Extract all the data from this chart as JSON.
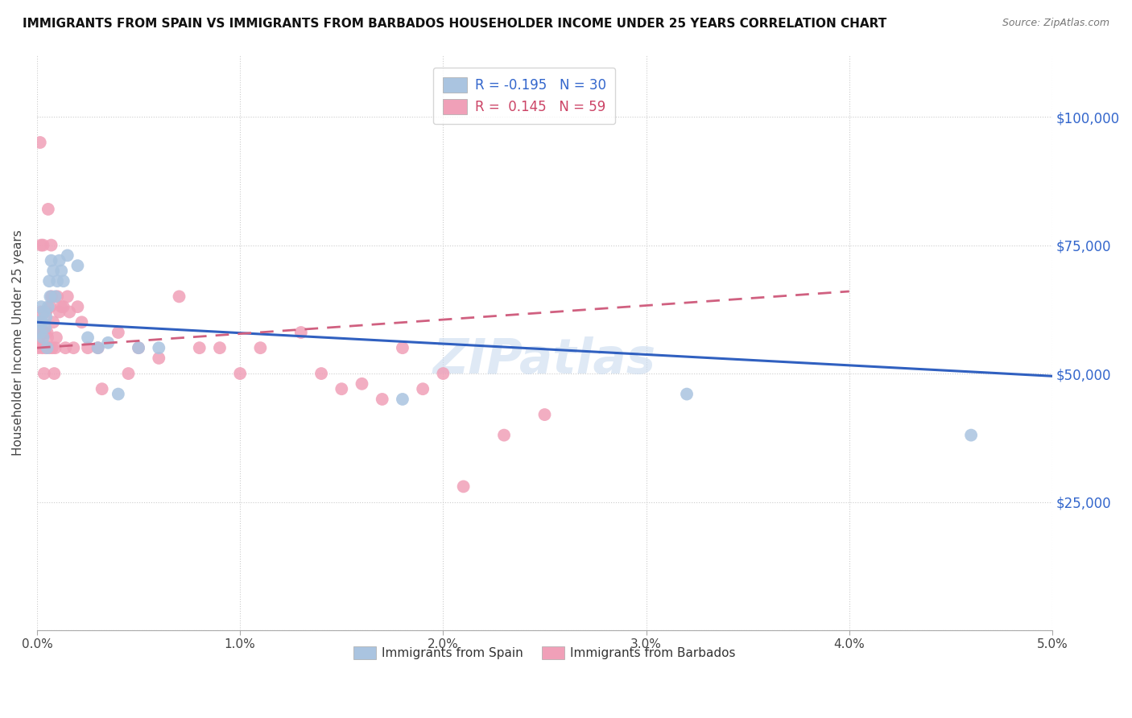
{
  "title": "IMMIGRANTS FROM SPAIN VS IMMIGRANTS FROM BARBADOS HOUSEHOLDER INCOME UNDER 25 YEARS CORRELATION CHART",
  "source": "Source: ZipAtlas.com",
  "ylabel": "Householder Income Under 25 years",
  "xlim": [
    0.0,
    0.05
  ],
  "ylim": [
    0,
    112000
  ],
  "spain_R": -0.195,
  "spain_N": 30,
  "barbados_R": 0.145,
  "barbados_N": 59,
  "spain_color": "#aac4e0",
  "barbados_color": "#f0a0b8",
  "spain_line_color": "#3060c0",
  "barbados_line_color": "#d06080",
  "spain_line_x0": 0.0,
  "spain_line_y0": 60000,
  "spain_line_x1": 0.05,
  "spain_line_y1": 49500,
  "barbados_line_x0": 0.0,
  "barbados_line_y0": 55000,
  "barbados_line_x1": 0.04,
  "barbados_line_y1": 66000,
  "spain_x": [
    0.0001,
    0.00015,
    0.0002,
    0.00025,
    0.0003,
    0.00035,
    0.0004,
    0.00045,
    0.0005,
    0.00055,
    0.0006,
    0.00065,
    0.0007,
    0.0008,
    0.0009,
    0.001,
    0.0011,
    0.0012,
    0.0013,
    0.0015,
    0.002,
    0.0025,
    0.003,
    0.0035,
    0.004,
    0.005,
    0.006,
    0.018,
    0.032,
    0.046
  ],
  "spain_y": [
    60000,
    58000,
    63000,
    60000,
    57000,
    62000,
    59000,
    61000,
    55000,
    63000,
    68000,
    65000,
    72000,
    70000,
    65000,
    68000,
    72000,
    70000,
    68000,
    73000,
    71000,
    57000,
    55000,
    56000,
    46000,
    55000,
    55000,
    45000,
    46000,
    38000
  ],
  "barbados_x": [
    5e-05,
    0.0001,
    0.00012,
    0.00015,
    0.00018,
    0.0002,
    0.00022,
    0.00025,
    0.0003,
    0.00032,
    0.00035,
    0.0004,
    0.00042,
    0.00045,
    0.0005,
    0.00052,
    0.00055,
    0.0006,
    0.00065,
    0.0007,
    0.00072,
    0.00075,
    0.0008,
    0.00085,
    0.0009,
    0.00095,
    0.001,
    0.0011,
    0.0012,
    0.0013,
    0.0014,
    0.0015,
    0.0016,
    0.0018,
    0.002,
    0.0022,
    0.0025,
    0.003,
    0.0032,
    0.004,
    0.0045,
    0.005,
    0.006,
    0.007,
    0.008,
    0.009,
    0.01,
    0.011,
    0.013,
    0.014,
    0.015,
    0.016,
    0.017,
    0.018,
    0.019,
    0.02,
    0.021,
    0.023,
    0.025
  ],
  "barbados_y": [
    55000,
    57000,
    58000,
    95000,
    62000,
    75000,
    60000,
    55000,
    75000,
    58000,
    50000,
    58000,
    55000,
    62000,
    58000,
    57000,
    82000,
    55000,
    63000,
    75000,
    65000,
    55000,
    60000,
    50000,
    55000,
    57000,
    65000,
    62000,
    63000,
    63000,
    55000,
    65000,
    62000,
    55000,
    63000,
    60000,
    55000,
    55000,
    47000,
    58000,
    50000,
    55000,
    53000,
    65000,
    55000,
    55000,
    50000,
    55000,
    58000,
    50000,
    47000,
    48000,
    45000,
    55000,
    47000,
    50000,
    28000,
    38000,
    42000
  ],
  "ytick_positions": [
    0,
    25000,
    50000,
    75000,
    100000
  ],
  "ytick_labels": [
    "",
    "$25,000",
    "$50,000",
    "$75,000",
    "$100,000"
  ],
  "xtick_positions": [
    0.0,
    0.01,
    0.02,
    0.03,
    0.04,
    0.05
  ],
  "xtick_labels": [
    "0.0%",
    "1.0%",
    "2.0%",
    "3.0%",
    "4.0%",
    "5.0%"
  ],
  "xlabel_bottom_left": "0.0%",
  "xlabel_bottom_right": "5.0%"
}
